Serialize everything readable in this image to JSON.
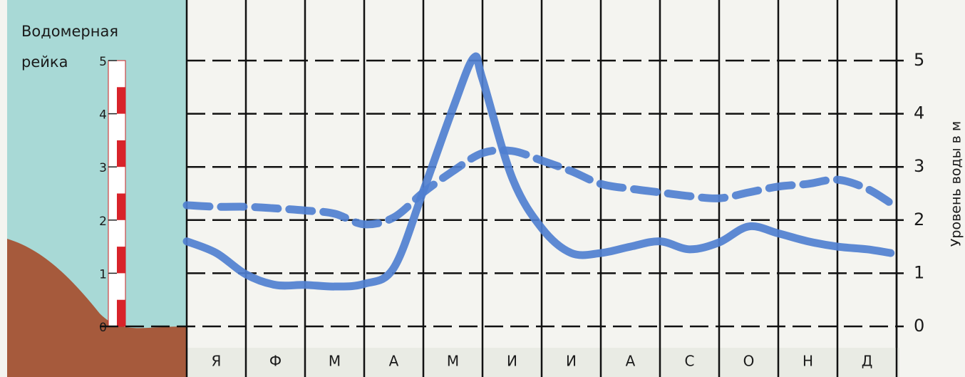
{
  "chart_data": {
    "type": "line",
    "gauge_title": [
      "Водомерная",
      "рейка"
    ],
    "gauge_ticks": [
      0,
      1,
      2,
      3,
      4,
      5
    ],
    "y_label": "Уровень воды в м",
    "categories": [
      "Я",
      "Ф",
      "М",
      "А",
      "М",
      "И",
      "И",
      "А",
      "С",
      "О",
      "Н",
      "Д"
    ],
    "xlim": [
      0,
      12
    ],
    "ylim": [
      0,
      5
    ],
    "yticks": [
      0,
      1,
      2,
      3,
      4,
      5
    ],
    "y_axis_side": "right",
    "grid": true,
    "series": [
      {
        "color": "#4f7fd0",
        "dash": "solid",
        "x": [
          0,
          0.5,
          1,
          1.5,
          2,
          2.5,
          3,
          3.5,
          4,
          4.5,
          4.85,
          5,
          5.5,
          6,
          6.5,
          7,
          7.5,
          8,
          8.5,
          9,
          9.5,
          10,
          10.5,
          11,
          11.5,
          11.9
        ],
        "values": [
          1.6,
          1.38,
          0.98,
          0.78,
          0.78,
          0.75,
          0.8,
          1.1,
          2.55,
          4.1,
          5.05,
          4.65,
          2.8,
          1.85,
          1.38,
          1.38,
          1.5,
          1.6,
          1.45,
          1.58,
          1.88,
          1.75,
          1.6,
          1.5,
          1.45,
          1.38
        ]
      },
      {
        "color": "#4f7fd0",
        "dash": "dashed",
        "x": [
          0,
          0.5,
          1,
          1.5,
          2,
          2.5,
          3,
          3.5,
          4,
          4.5,
          5,
          5.5,
          6,
          6.5,
          7,
          7.5,
          8,
          8.5,
          9,
          9.5,
          10,
          10.5,
          11,
          11.5,
          11.9
        ],
        "values": [
          2.28,
          2.25,
          2.25,
          2.22,
          2.18,
          2.12,
          1.92,
          2.05,
          2.52,
          2.92,
          3.26,
          3.3,
          3.12,
          2.92,
          2.68,
          2.59,
          2.52,
          2.45,
          2.41,
          2.52,
          2.63,
          2.68,
          2.76,
          2.59,
          2.32
        ]
      }
    ]
  }
}
